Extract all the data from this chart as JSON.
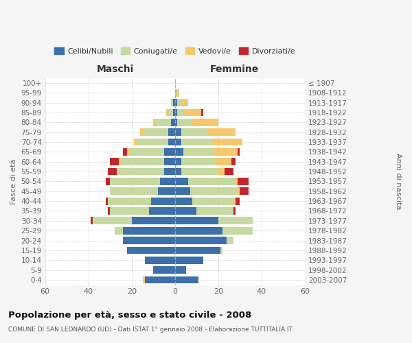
{
  "age_groups": [
    "0-4",
    "5-9",
    "10-14",
    "15-19",
    "20-24",
    "25-29",
    "30-34",
    "35-39",
    "40-44",
    "45-49",
    "50-54",
    "55-59",
    "60-64",
    "65-69",
    "70-74",
    "75-79",
    "80-84",
    "85-89",
    "90-94",
    "95-99",
    "100+"
  ],
  "anni_nascita": [
    "2003-2007",
    "1998-2002",
    "1993-1997",
    "1988-1992",
    "1983-1987",
    "1978-1982",
    "1973-1977",
    "1968-1972",
    "1963-1967",
    "1958-1962",
    "1953-1957",
    "1948-1952",
    "1943-1947",
    "1938-1942",
    "1933-1937",
    "1928-1932",
    "1923-1927",
    "1918-1922",
    "1913-1917",
    "1908-1912",
    "≤ 1907"
  ],
  "maschi": {
    "celibi": [
      14,
      10,
      14,
      22,
      24,
      24,
      20,
      12,
      11,
      8,
      7,
      5,
      5,
      5,
      3,
      3,
      2,
      1,
      1,
      0,
      0
    ],
    "coniugati": [
      0,
      0,
      0,
      0,
      0,
      4,
      18,
      18,
      20,
      22,
      23,
      22,
      20,
      16,
      14,
      12,
      7,
      2,
      1,
      0,
      0
    ],
    "vedovi": [
      1,
      0,
      0,
      0,
      0,
      0,
      0,
      0,
      0,
      0,
      0,
      0,
      1,
      1,
      2,
      1,
      1,
      1,
      0,
      0,
      0
    ],
    "divorziati": [
      0,
      0,
      0,
      0,
      0,
      0,
      1,
      1,
      1,
      0,
      2,
      4,
      4,
      2,
      0,
      0,
      0,
      0,
      0,
      0,
      0
    ]
  },
  "femmine": {
    "nubili": [
      11,
      5,
      13,
      21,
      24,
      22,
      20,
      10,
      8,
      7,
      6,
      3,
      3,
      4,
      3,
      3,
      1,
      1,
      1,
      0,
      0
    ],
    "coniugate": [
      0,
      0,
      0,
      1,
      3,
      14,
      16,
      17,
      19,
      22,
      22,
      17,
      16,
      14,
      14,
      12,
      7,
      3,
      2,
      1,
      0
    ],
    "vedove": [
      0,
      0,
      0,
      0,
      0,
      0,
      0,
      0,
      1,
      1,
      1,
      3,
      7,
      11,
      14,
      13,
      12,
      8,
      3,
      1,
      0
    ],
    "divorziate": [
      0,
      0,
      0,
      0,
      0,
      0,
      0,
      1,
      2,
      4,
      5,
      4,
      2,
      1,
      0,
      0,
      0,
      1,
      0,
      0,
      0
    ]
  },
  "colors": {
    "celibi_nubili": "#3d6fa8",
    "coniugati": "#c5d9a0",
    "vedovi": "#f5c86e",
    "divorziati": "#c0272d"
  },
  "title": "Popolazione per età, sesso e stato civile - 2008",
  "subtitle": "COMUNE DI SAN LEONARDO (UD) - Dati ISTAT 1° gennaio 2008 - Elaborazione TUTTITALIA.IT",
  "xlabel_left": "Maschi",
  "xlabel_right": "Femmine",
  "ylabel_left": "Fasce di età",
  "ylabel_right": "Anni di nascita",
  "xlim": 60,
  "legend_labels": [
    "Celibi/Nubili",
    "Coniugati/e",
    "Vedovi/e",
    "Divorziati/e"
  ],
  "bg_color": "#f5f5f5",
  "plot_bg": "#ffffff"
}
